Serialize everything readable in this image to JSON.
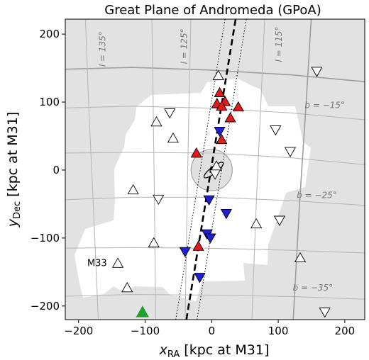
{
  "chart_data": {
    "type": "scatter",
    "title": "Great Plane of Andromeda (GPoA)",
    "xlabel_main": "x",
    "xlabel_sub": "RA",
    "xlabel_rest": " [kpc at M31]",
    "ylabel_main": "y",
    "ylabel_sub": "Dec",
    "ylabel_rest": " [kpc at M31]",
    "xlim": [
      -220,
      230
    ],
    "ylim": [
      -220,
      222
    ],
    "xticks": [
      -200,
      -100,
      0,
      100,
      200
    ],
    "yticks": [
      -200,
      -100,
      0,
      100,
      200
    ],
    "grid": true,
    "colors": {
      "red": "#e31a1c",
      "blue": "#1f1fd6",
      "green": "#1fa02a",
      "open": "#ffffff",
      "background": "#e2e2e2",
      "survey": "#ffffff",
      "galactic_grid": "#b8b8b8"
    },
    "galactic_labels": [
      {
        "text": "l = 135°",
        "x": -160,
        "y": 178
      },
      {
        "text": "l = 125°",
        "x": -37,
        "y": 182
      },
      {
        "text": "l = 115°",
        "x": 105,
        "y": 185
      },
      {
        "text": "b = −15°",
        "x": 170,
        "y": 91
      },
      {
        "text": "b = −25°",
        "x": 158,
        "y": -41
      },
      {
        "text": "b = −35°",
        "x": 152,
        "y": -177
      }
    ],
    "series": [
      {
        "marker": "triangle-up",
        "fill": "red",
        "points": [
          [
            12,
            113
          ],
          [
            8,
            97
          ],
          [
            20,
            100
          ],
          [
            15,
            93
          ],
          [
            40,
            92
          ],
          [
            28,
            76
          ],
          [
            15,
            44
          ],
          [
            -23,
            24
          ],
          [
            -20,
            -113
          ]
        ]
      },
      {
        "marker": "triangle-down",
        "fill": "blue",
        "points": [
          [
            12,
            58
          ],
          [
            -4,
            -43
          ],
          [
            22,
            -63
          ],
          [
            -7,
            -93
          ],
          [
            -2,
            -99
          ],
          [
            -40,
            -119
          ],
          [
            -18,
            -157
          ]
        ]
      },
      {
        "marker": "triangle-up",
        "fill": "open",
        "points": [
          [
            10,
            138
          ],
          [
            -83,
            70
          ],
          [
            -58,
            46
          ],
          [
            -118,
            -30
          ],
          [
            -87,
            -108
          ],
          [
            -141,
            -138
          ],
          [
            -127,
            -174
          ],
          [
            7,
            5
          ],
          [
            67,
            -80
          ],
          [
            133,
            -130
          ]
        ]
      },
      {
        "marker": "triangle-down",
        "fill": "open",
        "points": [
          [
            -63,
            85
          ],
          [
            -80,
            -42
          ],
          [
            96,
            60
          ],
          [
            118,
            28
          ],
          [
            102,
            -73
          ],
          [
            5,
            -5
          ],
          [
            158,
            146
          ],
          [
            170,
            -208
          ]
        ]
      },
      {
        "marker": "triangle-up",
        "fill": "green",
        "points": [
          [
            -104,
            -210
          ]
        ]
      }
    ],
    "annotations": [
      {
        "text": "M33",
        "x": -187,
        "y": -136
      }
    ],
    "fit_line": {
      "points": [
        [
          -38,
          -220
        ],
        [
          36,
          222
        ]
      ]
    },
    "fit_band": [
      {
        "points": [
          [
            -54,
            -220
          ],
          [
            20,
            222
          ]
        ]
      },
      {
        "points": [
          [
            -22,
            -220
          ],
          [
            52,
            222
          ]
        ]
      }
    ],
    "m31_disk": {
      "center": [
        0,
        0
      ],
      "radius": 31
    },
    "m31_ellipse": {
      "center": [
        3,
        0
      ],
      "rx": 18,
      "ry": 5,
      "angle": -38
    }
  }
}
